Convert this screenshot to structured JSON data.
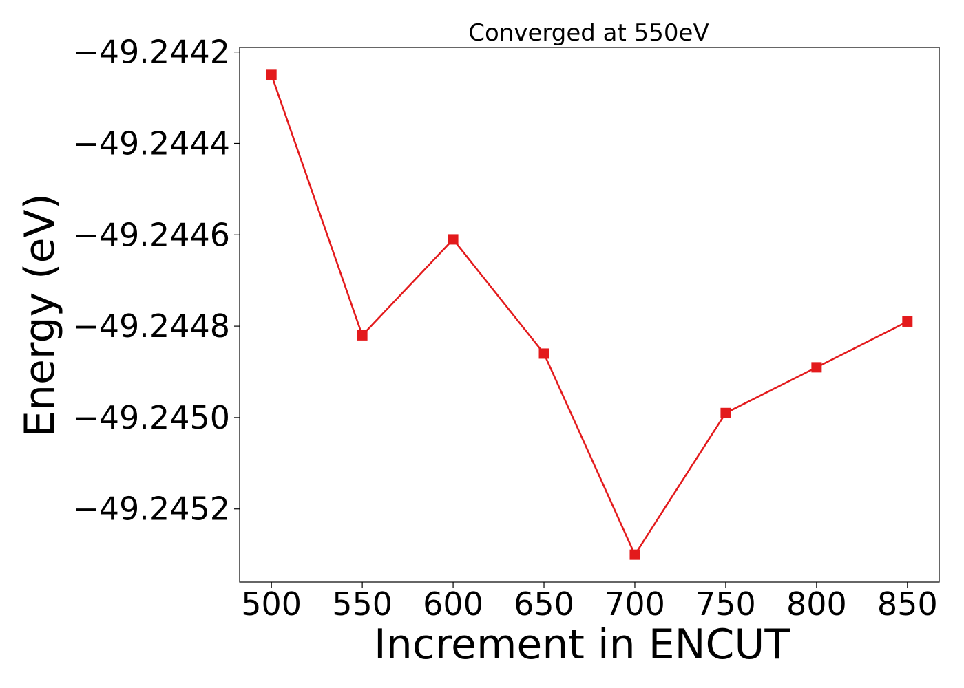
{
  "chart_data": {
    "type": "line",
    "title": "Converged at 550eV",
    "xlabel": "Increment in ENCUT",
    "ylabel": "Energy (eV)",
    "x": [
      500,
      550,
      600,
      650,
      700,
      750,
      800,
      850
    ],
    "series": [
      {
        "values": [
          -49.24425,
          -49.24482,
          -49.24461,
          -49.24486,
          -49.2453,
          -49.24499,
          -49.24489,
          -49.24479
        ],
        "color": "#e31a1c",
        "marker": "square"
      }
    ],
    "xticks": [
      500,
      550,
      600,
      650,
      700,
      750,
      800,
      850
    ],
    "xtick_labels": [
      "500",
      "550",
      "600",
      "650",
      "700",
      "750",
      "800",
      "850"
    ],
    "yticks": [
      -49.2442,
      -49.2444,
      -49.2446,
      -49.2448,
      -49.245,
      -49.2452
    ],
    "ytick_labels": [
      "−49.2442",
      "−49.2444",
      "−49.2446",
      "−49.2448",
      "−49.2450",
      "−49.2452"
    ],
    "xlim": [
      482.5,
      867.5
    ],
    "ylim": [
      -49.24536,
      -49.24419
    ],
    "grid": false,
    "legend": "none"
  }
}
